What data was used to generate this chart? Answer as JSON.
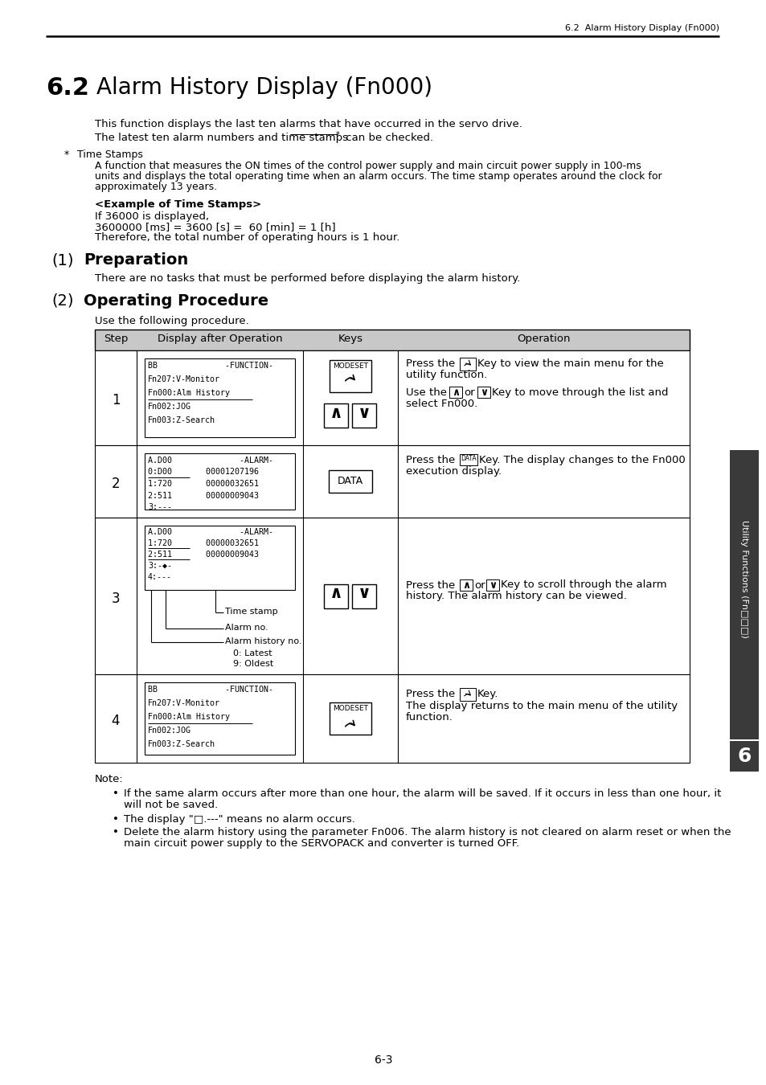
{
  "page_header": "6.2  Alarm History Display (Fn000)",
  "section_number": "6.2",
  "section_title": "Alarm History Display (Fn000)",
  "intro_line1": "This function displays the last ten alarms that have occurred in the servo drive.",
  "intro_line2": "The latest ten alarm numbers and time stamps",
  "intro_line2b": " can be checked.",
  "footnote_star": "*",
  "footnote_label": "Time Stamps",
  "footnote_body1": "A function that measures the ON times of the control power supply and main circuit power supply in 100-ms",
  "footnote_body2": "units and displays the total operating time when an alarm occurs. The time stamp operates around the clock for",
  "footnote_body3": "approximately 13 years.",
  "example_header": "<Example of Time Stamps>",
  "example_line1": "If 36000 is displayed,",
  "example_line2": "3600000 [ms] = 3600 [s] =  60 [min] = 1 [h]",
  "example_line3": "Therefore, the total number of operating hours is 1 hour.",
  "prep_label": "(1)",
  "prep_heading": "Preparation",
  "prep_text": "There are no tasks that must be performed before displaying the alarm history.",
  "op_label": "(2)",
  "op_heading": "Operating Procedure",
  "op_text": "Use the following procedure.",
  "th_step": "Step",
  "th_display": "Display after Operation",
  "th_keys": "Keys",
  "th_op": "Operation",
  "disp1": [
    "BB              -FUNCTION-",
    "Fn207:V-Monitor",
    "Fn000:Alm History",
    "Fn002:JOG",
    "Fn003:Z-Search"
  ],
  "disp2": [
    "A.D00              -ALARM-",
    "0:D00       00001207196",
    "1:720       00000032651",
    "2:511       00000009043",
    "3:---"
  ],
  "disp3": [
    "A.D00              -ALARM-",
    "1:720       00000032651",
    "2:511       00000009043",
    "3:-♦-",
    "4:---"
  ],
  "disp4": [
    "BB              -FUNCTION-",
    "Fn207:V-Monitor",
    "Fn000:Alm History",
    "Fn002:JOG",
    "Fn003:Z-Search"
  ],
  "op1_line1": "Press the",
  "op1_line2": "Key to view the main menu for the",
  "op1_line3": "utility function.",
  "op1_line4": "Use the",
  "op1_line5": "or",
  "op1_line6": "Key to move through the list and",
  "op1_line7": "select Fn000.",
  "op2_line1": "Press the",
  "op2_line2": "Key. The display changes to the Fn000",
  "op2_line3": "execution display.",
  "op3_line1": "Press the",
  "op3_line2": "or",
  "op3_line3": "Key to scroll through the alarm",
  "op3_line4": "history. The alarm history can be viewed.",
  "op4_line1": "Press the",
  "op4_line2": "Key.",
  "op4_line3": "The display returns to the main menu of the utility",
  "op4_line4": "function.",
  "ts_label": "Time stamp",
  "an_label": "Alarm no.",
  "ahn_label": "Alarm history no.",
  "latest_label": "0: Latest",
  "oldest_label": "9: Oldest",
  "note_header": "Note:",
  "note1a": "If the same alarm occurs after more than one hour, the alarm will be saved. If it occurs in less than one hour, it",
  "note1b": "will not be saved.",
  "note2": "The display \"□.---\" means no alarm occurs.",
  "note3a": "Delete the alarm history using the parameter Fn006. The alarm history is not cleared on alarm reset or when the",
  "note3b": "main circuit power supply to the SERVOPACK and converter is turned OFF.",
  "side_label": "Utility Functions (Fn□□□)",
  "chapter_num": "6",
  "page_number": "6-3"
}
